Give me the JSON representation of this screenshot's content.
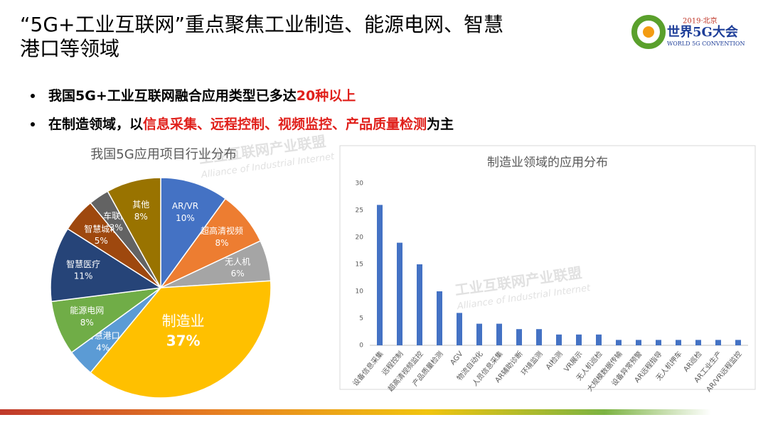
{
  "slide": {
    "title_lines": [
      "“5G+工业互联网”重点聚焦工业制造、能源电网、智慧",
      "港口等领域"
    ],
    "logo": {
      "top": "2019·北京",
      "name": "世界5G大会",
      "sub": "WORLD 5G CONVENTION"
    },
    "bullets": [
      [
        {
          "text": "我国5G+工业互联网融合应用类型已多达",
          "color": "#000000"
        },
        {
          "text": "20种以上",
          "color": "#e0201b"
        }
      ],
      [
        {
          "text": "在制造领域，以",
          "color": "#000000"
        },
        {
          "text": "信息采集、远程控制、视频监控、产品质量检测",
          "color": "#e0201b"
        },
        {
          "text": "为主",
          "color": "#000000"
        }
      ]
    ],
    "watermark": {
      "cn": "工业互联网产业联盟",
      "en": "Alliance of Industrial Internet"
    }
  },
  "chart_data": [
    {
      "type": "pie",
      "title": "我国5G应用项目行业分布",
      "categories": [
        "AR/VR",
        "超高清视频",
        "无人机",
        "制造业",
        "智慧港口",
        "能源电网",
        "智慧医疗",
        "智慧城市",
        "车联网",
        "其他"
      ],
      "values": [
        10,
        8,
        6,
        37,
        4,
        8,
        11,
        5,
        3,
        8
      ],
      "value_labels": [
        "10%",
        "8%",
        "6%",
        "37%",
        "4%",
        "8%",
        "11%",
        "5%",
        "3%",
        "8%"
      ],
      "colors": [
        "#4472c4",
        "#ed7d31",
        "#a5a5a5",
        "#ffc000",
        "#5b9bd5",
        "#70ad47",
        "#264478",
        "#9e480e",
        "#636363",
        "#997300"
      ]
    },
    {
      "type": "bar",
      "title": "制造业领域的应用分布",
      "categories": [
        "设备信息采集",
        "远程控制",
        "超高清视频监控",
        "产品质量检测",
        "AGV",
        "物流自动化",
        "人员信息采集",
        "AR辅助诊断",
        "环境监测",
        "AI检测",
        "VR展示",
        "无人机巡检",
        "大规模数据传输",
        "设备异常预警",
        "AR远程指导",
        "无人机押车",
        "AR巡检",
        "AR工业生产",
        "AR/VR远程监控"
      ],
      "values": [
        26,
        19,
        15,
        10,
        6,
        4,
        4,
        3,
        3,
        2,
        2,
        2,
        1,
        1,
        1,
        1,
        1,
        1,
        1
      ],
      "color": "#4472c4",
      "ylim": [
        0,
        30
      ],
      "yticks": [
        0,
        5,
        10,
        15,
        20,
        25,
        30
      ],
      "grid": false
    }
  ]
}
